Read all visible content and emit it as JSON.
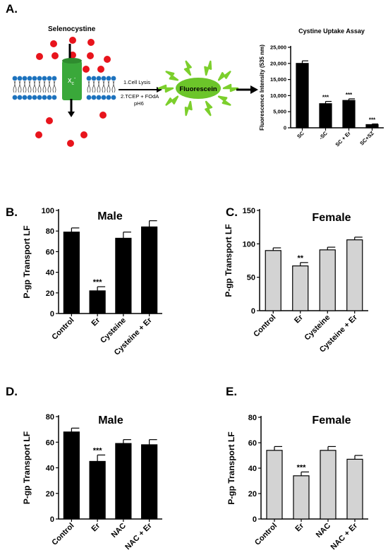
{
  "colors": {
    "male": "#000000",
    "female": "#d3d3d3",
    "dot": "#e8141c",
    "membrane": "#1e73be",
    "transporter": "#3aa83a",
    "burst": "#7ccf2c",
    "fluor": "#6cc52a"
  },
  "panel_a": {
    "label": "A.",
    "selenocystine_label": "Selenocystine",
    "transporter_label": "x",
    "transporter_sub": "c",
    "transporter_sup": "-",
    "step1": "1.Cell Lysis",
    "step2": "2.TCEP + FOdA",
    "step3": "pH6",
    "fluor_label": "Fluorescein",
    "icons": [
      "red-dot-icon",
      "lipid-bilayer-icon",
      "transporter-icon",
      "arrow-icon",
      "fluorescence-burst-icon"
    ]
  },
  "chart_data": [
    {
      "id": "A",
      "type": "bar",
      "title": "Cystine Uptake Assay",
      "xlabel": "",
      "ylabel": "Fluorescence Intensity (535 nm)",
      "categories": [
        "SC",
        "-SC",
        "SC + Er",
        "SC+SZ"
      ],
      "values": [
        20000,
        7500,
        8500,
        1000
      ],
      "errors": [
        800,
        700,
        500,
        200
      ],
      "significance": [
        "",
        "***",
        "***",
        "***"
      ],
      "ylim": [
        0,
        25000
      ],
      "yticks": [
        "0",
        "5,000",
        "10,000",
        "15,000",
        "20,000",
        "25,000"
      ],
      "color": "#000000"
    },
    {
      "id": "B",
      "panel_label": "B.",
      "type": "bar",
      "title": "Male",
      "xlabel": "",
      "ylabel": "P-gp Transport  LF",
      "categories": [
        "Control",
        "Er",
        "Cysteine",
        "Cysteine + Er"
      ],
      "values": [
        79,
        22,
        73,
        84
      ],
      "errors": [
        4,
        4,
        6,
        6
      ],
      "significance": [
        "",
        "***",
        "",
        ""
      ],
      "ylim": [
        0,
        100
      ],
      "yticks": [
        "0",
        "20",
        "40",
        "60",
        "80",
        "100"
      ],
      "color": "#000000"
    },
    {
      "id": "C",
      "panel_label": "C.",
      "type": "bar",
      "title": "Female",
      "xlabel": "",
      "ylabel": "P-gp Transport  LF",
      "categories": [
        "Control",
        "Er",
        "Cysteine",
        "Cysteine + Er"
      ],
      "values": [
        90,
        67,
        91,
        106
      ],
      "errors": [
        4,
        5,
        4,
        4
      ],
      "significance": [
        "",
        "**",
        "",
        ""
      ],
      "ylim": [
        0,
        150
      ],
      "yticks": [
        "0",
        "50",
        "100",
        "150"
      ],
      "color": "#d3d3d3"
    },
    {
      "id": "D",
      "panel_label": "D.",
      "type": "bar",
      "title": "Male",
      "xlabel": "",
      "ylabel": "P-gp Transport  LF",
      "categories": [
        "Control",
        "Er",
        "NAC",
        "NAC + Er"
      ],
      "values": [
        68,
        45,
        59,
        58
      ],
      "errors": [
        3,
        5,
        3,
        4
      ],
      "significance": [
        "",
        "***",
        "",
        ""
      ],
      "ylim": [
        0,
        80
      ],
      "yticks": [
        "0",
        "20",
        "40",
        "60",
        "80"
      ],
      "color": "#000000"
    },
    {
      "id": "E",
      "panel_label": "E.",
      "type": "bar",
      "title": "Female",
      "xlabel": "",
      "ylabel": "P-gp Transport  LF",
      "categories": [
        "Control",
        "Er",
        "NAC",
        "NAC + Er"
      ],
      "values": [
        54,
        34,
        54,
        47
      ],
      "errors": [
        3,
        3,
        3,
        3
      ],
      "significance": [
        "",
        "***",
        "",
        ""
      ],
      "ylim": [
        0,
        80
      ],
      "yticks": [
        "0",
        "20",
        "40",
        "60",
        "80"
      ],
      "color": "#d3d3d3"
    }
  ]
}
